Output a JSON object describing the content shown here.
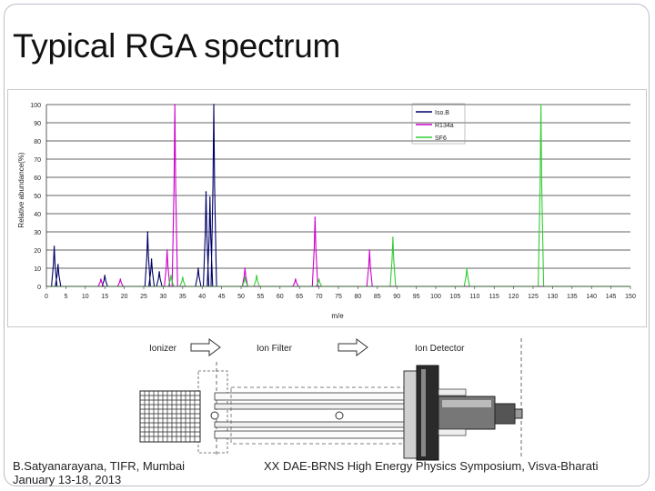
{
  "slide": {
    "title": "Typical RGA spectrum",
    "footer_left_line1": "B.Satyanarayana, TIFR, Mumbai",
    "footer_left_line2": "January 13-18, 2013",
    "footer_right": "XX DAE-BRNS High Energy Physics Symposium, Visva-Bharati"
  },
  "schematic": {
    "label_ionizer": "Ionizer",
    "label_ion_filter": "Ion Filter",
    "label_ion_detector": "Ion Detector"
  },
  "chart_data": {
    "type": "line",
    "title": "",
    "xlabel": "m/e",
    "ylabel": "Relative abundance(%)",
    "xlim": [
      0,
      150
    ],
    "ylim": [
      0,
      100
    ],
    "xticks": [
      0,
      5,
      10,
      15,
      20,
      25,
      30,
      35,
      40,
      45,
      50,
      55,
      60,
      65,
      70,
      75,
      80,
      85,
      90,
      95,
      100,
      105,
      110,
      115,
      120,
      125,
      130,
      135,
      140,
      145,
      150
    ],
    "yticks": [
      0,
      10,
      20,
      30,
      40,
      50,
      60,
      70,
      80,
      90,
      100
    ],
    "grid": "horizontal",
    "legend_position": "top-right",
    "series": [
      {
        "name": "Iso.B",
        "color": "#000066",
        "peaks": [
          [
            2,
            22
          ],
          [
            3,
            12
          ],
          [
            15,
            6
          ],
          [
            26,
            30
          ],
          [
            27,
            15
          ],
          [
            29,
            8
          ],
          [
            39,
            10
          ],
          [
            41,
            52
          ],
          [
            42,
            49
          ],
          [
            43,
            100
          ]
        ]
      },
      {
        "name": "R134a",
        "color": "#cc00cc",
        "peaks": [
          [
            14,
            4
          ],
          [
            19,
            4
          ],
          [
            31,
            20
          ],
          [
            33,
            100
          ],
          [
            51,
            10
          ],
          [
            64,
            4
          ],
          [
            69,
            38
          ],
          [
            83,
            20
          ]
        ]
      },
      {
        "name": "SF6",
        "color": "#33cc33",
        "peaks": [
          [
            32,
            6
          ],
          [
            35,
            5
          ],
          [
            51,
            5
          ],
          [
            54,
            6
          ],
          [
            70,
            4
          ],
          [
            89,
            27
          ],
          [
            108,
            10
          ],
          [
            127,
            100
          ]
        ]
      }
    ]
  }
}
